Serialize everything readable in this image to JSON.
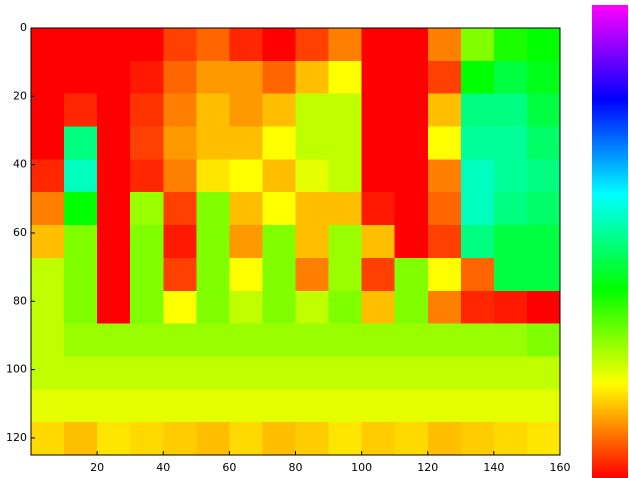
{
  "chart_data": {
    "type": "heatmap",
    "xlim": [
      0,
      160
    ],
    "ylim": [
      125,
      0
    ],
    "xticks": [
      20,
      40,
      60,
      80,
      100,
      120,
      140,
      160
    ],
    "yticks": [
      0,
      20,
      40,
      60,
      80,
      100,
      120
    ],
    "clim": [
      0,
      100
    ],
    "colormap": "hsv",
    "z": [
      [
        0,
        0,
        0,
        0,
        5,
        8,
        3,
        0,
        5,
        10,
        0,
        0,
        10,
        30,
        38,
        40
      ],
      [
        0,
        0,
        0,
        2,
        8,
        12,
        12,
        8,
        15,
        20,
        0,
        0,
        5,
        40,
        45,
        42
      ],
      [
        0,
        3,
        0,
        4,
        10,
        15,
        12,
        15,
        25,
        25,
        0,
        0,
        15,
        50,
        50,
        45
      ],
      [
        0,
        50,
        0,
        5,
        12,
        15,
        15,
        20,
        25,
        25,
        0,
        0,
        20,
        52,
        52,
        48
      ],
      [
        3,
        55,
        0,
        3,
        10,
        18,
        20,
        15,
        22,
        25,
        0,
        0,
        10,
        55,
        52,
        50
      ],
      [
        10,
        40,
        0,
        28,
        5,
        30,
        15,
        20,
        15,
        15,
        2,
        0,
        8,
        55,
        50,
        48
      ],
      [
        15,
        30,
        0,
        30,
        2,
        30,
        12,
        30,
        15,
        28,
        15,
        0,
        5,
        50,
        45,
        45
      ],
      [
        25,
        30,
        0,
        30,
        5,
        30,
        20,
        30,
        10,
        28,
        5,
        30,
        20,
        8,
        45,
        45
      ],
      [
        25,
        30,
        0,
        30,
        20,
        30,
        25,
        30,
        25,
        30,
        15,
        30,
        10,
        3,
        2,
        0
      ],
      [
        25,
        28,
        28,
        28,
        28,
        28,
        28,
        28,
        28,
        28,
        28,
        28,
        28,
        28,
        28,
        30
      ],
      [
        25,
        25,
        25,
        25,
        25,
        25,
        25,
        25,
        25,
        25,
        25,
        25,
        25,
        25,
        25,
        25
      ],
      [
        22,
        22,
        22,
        22,
        22,
        22,
        22,
        22,
        22,
        22,
        22,
        22,
        22,
        22,
        22,
        22
      ],
      [
        17,
        15,
        18,
        17,
        16,
        15,
        17,
        15,
        16,
        18,
        16,
        17,
        15,
        16,
        17,
        18
      ]
    ]
  }
}
